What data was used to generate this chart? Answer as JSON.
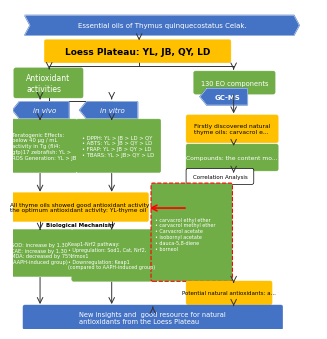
{
  "bg_color": "#ffffff",
  "top_text": "Essential oils of Thymus quinquecostatus Celak.",
  "loess_text": "Loess Plateau: YL, JB, QY, LD",
  "antioxidant_text": "Antioxidant\nactivities",
  "eo130_text": "130 EO components",
  "invivo_text": "in vivo",
  "invitro_text": "in vitro",
  "gcms_text": "GC-MS",
  "invivo_box_text": "Teratogenic Effects:\nbelow 40 μg / mL\nactivity in Tg (fli4:\ngfp)17 zebrafish: YL >\nROS Generation: YL > JB",
  "invitro_box_text": "• DPPH: YL > JB > LD > QY\n• ABTS: YL > JB > QY > LD\n• FRAP: YL > JB > QY > LD\n• TBARS: YL > JB> QY > LD",
  "firstly_text": "Firstly discovered natural\nthyme oils: carvacrol e...",
  "compounds_text": "Compounds: the content mo...",
  "corr_analysis_text": "Correlation Analysis",
  "yellow_all_text": "All thyme oils showed good antioxidant activity\nthe optimum antioxidant activity: YL-thyme oil",
  "bio_mech_text": "Biological Mechanism",
  "sod_box_text": "SOD: increase by 1.30\nCAE: increase by 1.30\nMDA: decreased by 75%\n(AAPH-induced group)",
  "keap_box_text": "Keap1-Nrf2 pathway:\n• Upregulation: Sod1, Cat, Nrf2,\n  Hmox1\n• Downregulation: Keap1\n(compared to AAPH-induced group)",
  "corr_box_text": "• carvacrol ethyl ether\n• carvacrol methyl ether\n• Carvacrol acetate\n• isobornyl acetate\n• dauca-5,8-diene\n• borneol",
  "potential_text": "Potential natural antioxidants: a...",
  "bottom_text": "New insights and  good resource for natural\nantioxidants from the Loess Plateau",
  "blue": "#4472C4",
  "green": "#70AD47",
  "yellow": "#FFC000",
  "white": "#ffffff",
  "black": "#000000",
  "red": "#ff0000",
  "dark": "#333333"
}
